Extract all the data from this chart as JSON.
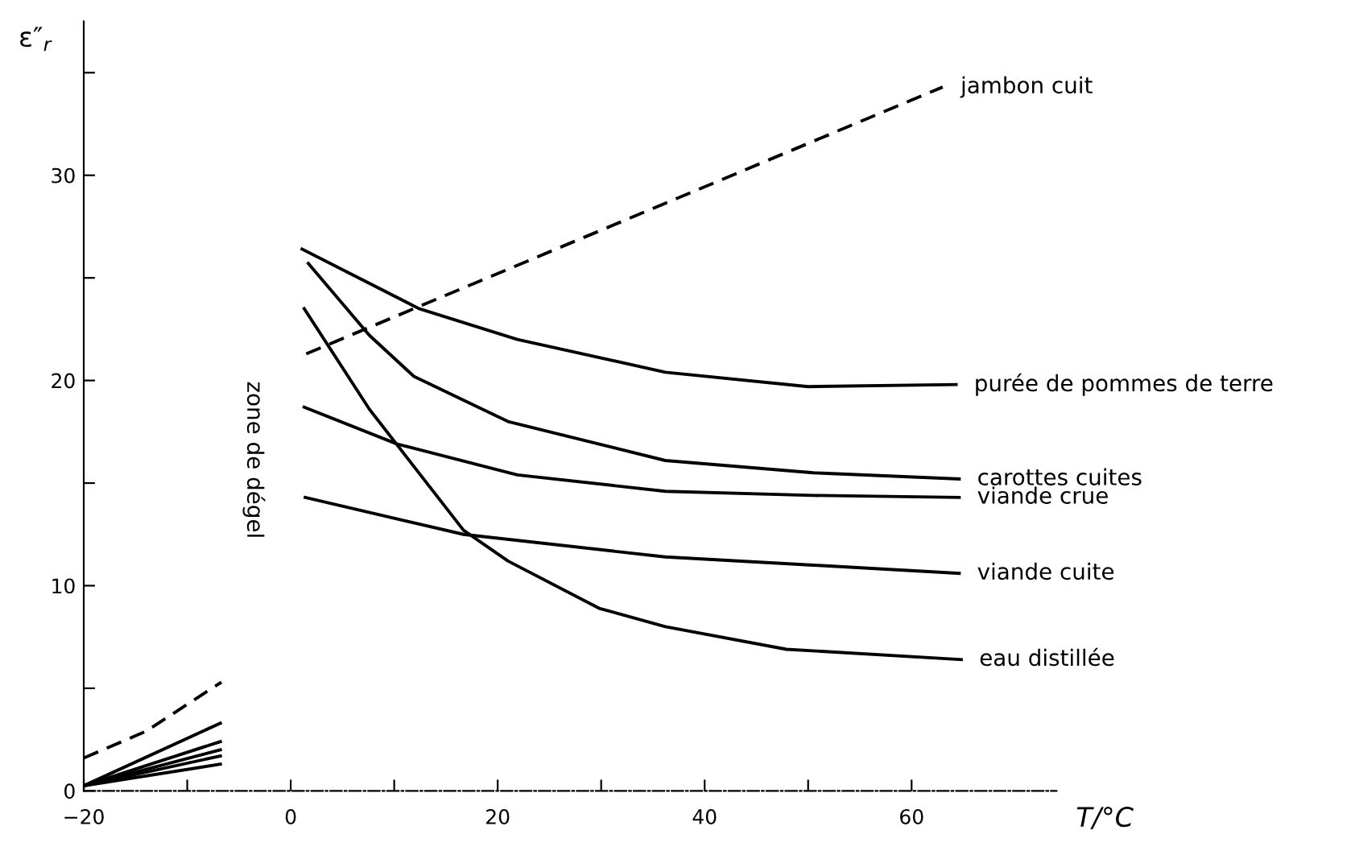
{
  "chart_data": {
    "type": "line",
    "xlabel": "T/°C",
    "ylabel": "ε″$_{r}$",
    "xlim": [
      -20,
      74
    ],
    "ylim": [
      0,
      37.5
    ],
    "xticks": [
      {
        "value": -20,
        "label": "−20"
      },
      {
        "value": -10,
        "label": null
      },
      0,
      {
        "value": 10,
        "label": null
      },
      20,
      {
        "value": 30,
        "label": null
      },
      40,
      {
        "value": 50,
        "label": null
      },
      60
    ],
    "yticks": [
      0,
      {
        "value": 5,
        "label": null
      },
      10,
      {
        "value": 15,
        "label": null
      },
      20,
      {
        "value": 25,
        "label": null
      },
      30,
      {
        "value": 35,
        "label": null
      }
    ],
    "grid": false,
    "legend": false,
    "marker": "none",
    "annotations": [
      "zone de dégel"
    ],
    "series": [
      {
        "name": "jambon cuit",
        "color": "#000000",
        "line_style": "dashed",
        "x": [
          1.5,
          63
        ],
        "values": [
          21.3,
          34.3
        ]
      },
      {
        "name": "purée de pommes de terre",
        "color": "#000000",
        "x": [
          1.1,
          12.4,
          21.9,
          36.2,
          50,
          64.3
        ],
        "values": [
          26.4,
          23.5,
          22.0,
          20.4,
          19.7,
          19.8
        ]
      },
      {
        "name": "carottes cuites",
        "color": "#000000",
        "x": [
          1.7,
          7.6,
          11.9,
          21,
          36.2,
          50.5,
          64.6
        ],
        "values": [
          25.7,
          22.2,
          20.2,
          18.0,
          16.1,
          15.5,
          15.2
        ]
      },
      {
        "name": "viande crue",
        "color": "#000000",
        "x": [
          1.3,
          10.3,
          21.9,
          36.2,
          50.5,
          64.6
        ],
        "values": [
          18.7,
          16.9,
          15.4,
          14.6,
          14.4,
          14.3
        ]
      },
      {
        "name": "viande cuite",
        "color": "#000000",
        "x": [
          1.4,
          16.7,
          36.2,
          50.5,
          64.6
        ],
        "values": [
          14.3,
          12.5,
          11.4,
          11.0,
          10.6
        ]
      },
      {
        "name": "eau distillée",
        "color": "#000000",
        "x": [
          1.3,
          7.6,
          16.7,
          21,
          29.8,
          36.2,
          47.9,
          64.8
        ],
        "values": [
          23.5,
          18.6,
          12.7,
          11.2,
          8.9,
          8.0,
          6.9,
          6.4
        ]
      },
      {
        "color": "#000000",
        "line_style": "dashed",
        "x": [
          -20,
          -14,
          -6.7
        ],
        "values": [
          1.6,
          2.9,
          5.3
        ]
      },
      {
        "color": "#000000",
        "x": [
          -20,
          -6.8
        ],
        "values": [
          0.25,
          3.3
        ]
      },
      {
        "color": "#000000",
        "x": [
          -20,
          -6.8
        ],
        "values": [
          0.25,
          2.4
        ]
      },
      {
        "color": "#000000",
        "x": [
          -20,
          -6.8
        ],
        "values": [
          0.25,
          2.0
        ]
      },
      {
        "color": "#000000",
        "x": [
          -20,
          -6.8
        ],
        "values": [
          0.25,
          1.7
        ]
      },
      {
        "color": "#000000",
        "x": [
          -20,
          -6.8
        ],
        "values": [
          0.25,
          1.3
        ]
      }
    ]
  }
}
